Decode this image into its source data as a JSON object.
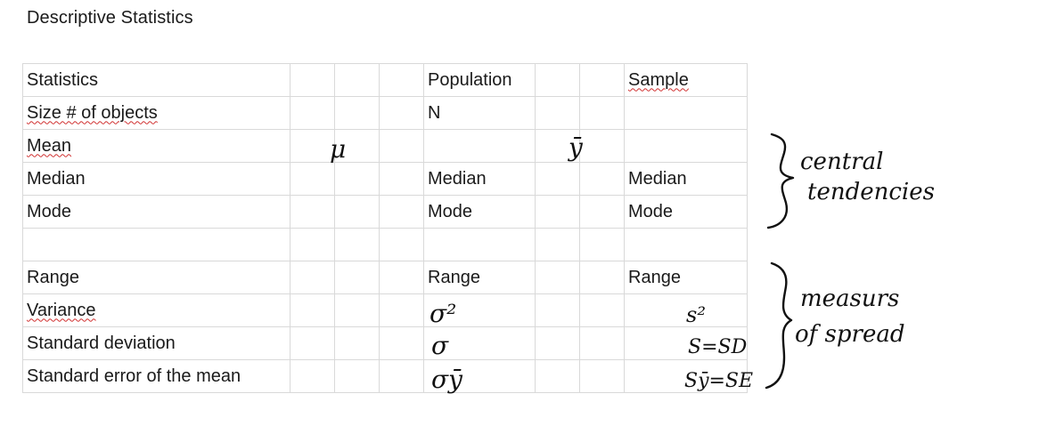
{
  "title": "Descriptive Statistics",
  "table": {
    "rows": [
      {
        "label": "Statistics",
        "population": "Population",
        "sample": "Sample"
      },
      {
        "label": "Size # of objects",
        "population": "N",
        "sample": ""
      },
      {
        "label": "Mean",
        "population": "",
        "sample": ""
      },
      {
        "label": "Median",
        "population": "Median",
        "sample": "Median"
      },
      {
        "label": "Mode",
        "population": "Mode",
        "sample": "Mode"
      },
      {
        "label": "",
        "population": "",
        "sample": ""
      },
      {
        "label": "Range",
        "population": "Range",
        "sample": "Range"
      },
      {
        "label": "Variance",
        "population": "",
        "sample": ""
      },
      {
        "label": "Standard deviation",
        "population": "",
        "sample": ""
      },
      {
        "label": "Standard error of the mean",
        "population": "",
        "sample": ""
      }
    ]
  },
  "handwriting": {
    "pop_mean": "μ",
    "sample_mean": "ȳ",
    "pop_variance": "σ²",
    "pop_sd": "σ",
    "pop_se": "σȳ",
    "sample_variance": "s²",
    "sample_sd": "S=SD",
    "sample_se": "Sȳ=SE",
    "central": "central tendencies",
    "central_line1": "central",
    "central_line2": "tendencies",
    "spread": "measurs of spread",
    "spread_line1": "measurs",
    "spread_line2": "of spread"
  }
}
